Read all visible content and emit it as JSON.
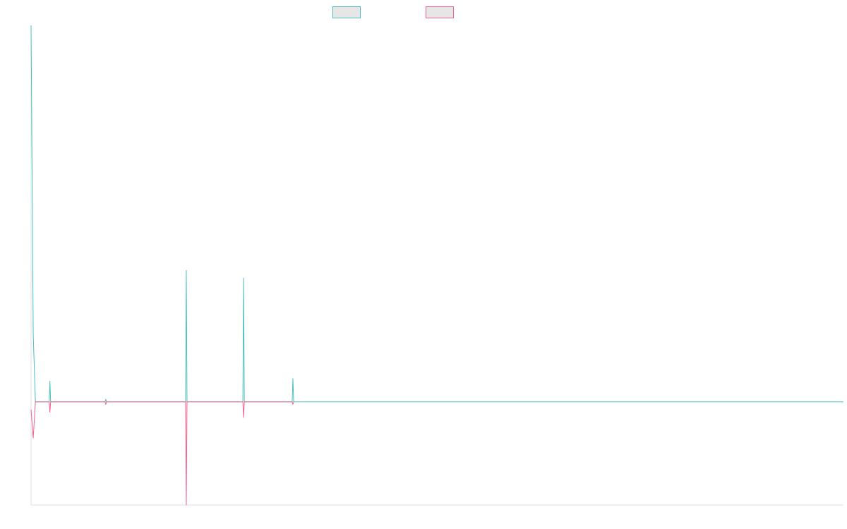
{
  "chart_data": {
    "type": "line",
    "title": "",
    "xlabel": "",
    "ylabel": "",
    "grid": false,
    "legend_position": "top",
    "x_count": 112,
    "ylim": [
      -20,
      73
    ],
    "series": [
      {
        "name": "",
        "color": "#4bbfbf",
        "fill": "#e6e6e6",
        "points": [
          [
            0,
            73
          ],
          [
            0.3,
            13
          ],
          [
            0.6,
            0
          ],
          [
            2.5,
            0
          ],
          [
            2.6,
            4
          ],
          [
            2.7,
            0
          ],
          [
            10.2,
            0
          ],
          [
            10.3,
            0.5
          ],
          [
            10.4,
            0
          ],
          [
            21.3,
            0
          ],
          [
            21.4,
            25.5
          ],
          [
            21.5,
            0
          ],
          [
            29.2,
            0
          ],
          [
            29.3,
            24
          ],
          [
            29.4,
            0
          ],
          [
            36.0,
            0
          ],
          [
            36.1,
            4.5
          ],
          [
            36.2,
            0
          ],
          [
            112,
            0
          ]
        ]
      },
      {
        "name": "",
        "color": "#f0628a",
        "fill": "#e6e6e6",
        "points": [
          [
            0,
            -1.5
          ],
          [
            0.3,
            -7
          ],
          [
            0.6,
            0
          ],
          [
            2.5,
            0
          ],
          [
            2.6,
            -2
          ],
          [
            2.7,
            0
          ],
          [
            10.2,
            0
          ],
          [
            10.3,
            -0.5
          ],
          [
            10.4,
            0
          ],
          [
            21.3,
            0
          ],
          [
            21.4,
            -20
          ],
          [
            21.5,
            0
          ],
          [
            29.2,
            0
          ],
          [
            29.3,
            -3
          ],
          [
            29.4,
            0
          ],
          [
            36.0,
            0
          ],
          [
            36.1,
            -0.5
          ],
          [
            36.2,
            0
          ]
        ]
      }
    ]
  }
}
